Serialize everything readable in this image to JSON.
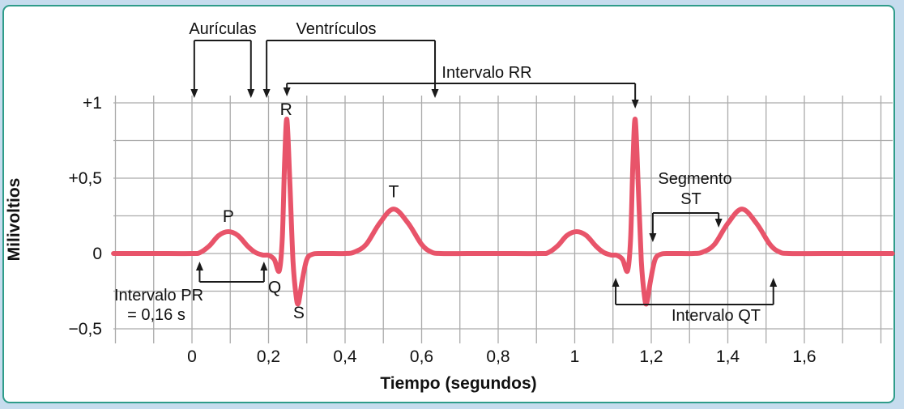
{
  "figure": {
    "outer_bg": "#c6dcee",
    "border_color": "#2f9c8a",
    "inner_bg": "#ffffff"
  },
  "chart_data": {
    "type": "line",
    "title": "",
    "xlabel": "Tiempo (segundos)",
    "ylabel": "Milivoltios",
    "xlim": [
      -0.205,
      1.83
    ],
    "ylim": [
      -0.6,
      1.05
    ],
    "legend": "none",
    "grid": {
      "x_start": -0.2,
      "x_end": 1.8,
      "x_step": 0.1,
      "y_start": -0.5,
      "y_end": 1.0,
      "y_step": 0.25,
      "color": "#ababab"
    },
    "x_ticks": [
      {
        "v": 0.0,
        "label": "0"
      },
      {
        "v": 0.2,
        "label": "0,2"
      },
      {
        "v": 0.4,
        "label": "0,4"
      },
      {
        "v": 0.6,
        "label": "0,6"
      },
      {
        "v": 0.8,
        "label": "0,8"
      },
      {
        "v": 1.0,
        "label": "1"
      },
      {
        "v": 1.2,
        "label": "1,2"
      },
      {
        "v": 1.4,
        "label": "1,4"
      },
      {
        "v": 1.6,
        "label": "1,6"
      }
    ],
    "y_ticks": [
      {
        "v": 1.0,
        "label": "+1"
      },
      {
        "v": 0.5,
        "label": "+0,5"
      },
      {
        "v": 0.0,
        "label": "0"
      },
      {
        "v": -0.5,
        "label": "−0,5"
      }
    ],
    "line_color": "#e8546a",
    "ecg_points": [
      [
        -0.205,
        0
      ],
      [
        -0.1,
        0
      ],
      [
        0.0,
        0
      ],
      [
        0.02,
        0.005
      ],
      [
        0.045,
        0.05
      ],
      [
        0.07,
        0.12
      ],
      [
        0.095,
        0.145
      ],
      [
        0.12,
        0.12
      ],
      [
        0.145,
        0.05
      ],
      [
        0.165,
        0.008
      ],
      [
        0.185,
        -0.01
      ],
      [
        0.2,
        -0.012
      ],
      [
        0.215,
        -0.04
      ],
      [
        0.228,
        -0.115
      ],
      [
        0.236,
        0.1
      ],
      [
        0.242,
        0.6
      ],
      [
        0.248,
        0.89
      ],
      [
        0.256,
        0.45
      ],
      [
        0.264,
        -0.05
      ],
      [
        0.272,
        -0.28
      ],
      [
        0.278,
        -0.33
      ],
      [
        0.288,
        -0.18
      ],
      [
        0.3,
        -0.04
      ],
      [
        0.315,
        -0.005
      ],
      [
        0.34,
        0
      ],
      [
        0.4,
        0
      ],
      [
        0.425,
        0.01
      ],
      [
        0.455,
        0.06
      ],
      [
        0.49,
        0.2
      ],
      [
        0.527,
        0.295
      ],
      [
        0.565,
        0.2
      ],
      [
        0.6,
        0.06
      ],
      [
        0.625,
        0.01
      ],
      [
        0.65,
        0
      ],
      [
        0.72,
        0
      ],
      [
        0.8,
        0
      ],
      [
        0.91,
        0
      ],
      [
        0.93,
        0.005
      ],
      [
        0.955,
        0.05
      ],
      [
        0.98,
        0.12
      ],
      [
        1.005,
        0.145
      ],
      [
        1.03,
        0.12
      ],
      [
        1.055,
        0.05
      ],
      [
        1.075,
        0.008
      ],
      [
        1.095,
        -0.01
      ],
      [
        1.11,
        -0.012
      ],
      [
        1.125,
        -0.04
      ],
      [
        1.138,
        -0.115
      ],
      [
        1.146,
        0.1
      ],
      [
        1.152,
        0.6
      ],
      [
        1.158,
        0.89
      ],
      [
        1.166,
        0.45
      ],
      [
        1.174,
        -0.05
      ],
      [
        1.182,
        -0.28
      ],
      [
        1.188,
        -0.33
      ],
      [
        1.198,
        -0.18
      ],
      [
        1.21,
        -0.04
      ],
      [
        1.225,
        -0.005
      ],
      [
        1.25,
        0
      ],
      [
        1.31,
        0
      ],
      [
        1.335,
        0.01
      ],
      [
        1.365,
        0.06
      ],
      [
        1.4,
        0.2
      ],
      [
        1.437,
        0.295
      ],
      [
        1.475,
        0.2
      ],
      [
        1.51,
        0.06
      ],
      [
        1.535,
        0.01
      ],
      [
        1.56,
        0
      ],
      [
        1.65,
        0
      ],
      [
        1.83,
        0
      ]
    ]
  },
  "annotations": {
    "auriculas": {
      "label": "Aurículas",
      "from_s": 0.006,
      "to_s": 0.154
    },
    "ventriculos": {
      "label": "Ventrículos",
      "from_s": 0.195,
      "to_s": 0.635
    },
    "rr": {
      "label": "Intervalo RR",
      "from_s": 0.248,
      "to_s": 1.158
    },
    "st": {
      "label_line1": "Segmento",
      "label_line2": "ST",
      "from_s": 1.204,
      "to_s": 1.376
    },
    "pr": {
      "label_line1": "Intervalo PR",
      "label_line2": "= 0,16 s",
      "from_s": 0.02,
      "to_s": 0.188
    },
    "qt": {
      "label": "Intervalo QT",
      "from_s": 1.107,
      "to_s": 1.519
    },
    "waves": [
      {
        "label": "P",
        "t": 0.095,
        "mv": 0.21
      },
      {
        "label": "Q",
        "t": 0.216,
        "mv": -0.26
      },
      {
        "label": "R",
        "t": 0.246,
        "mv": 0.92
      },
      {
        "label": "S",
        "t": 0.279,
        "mv": -0.43
      },
      {
        "label": "T",
        "t": 0.527,
        "mv": 0.375
      }
    ]
  }
}
